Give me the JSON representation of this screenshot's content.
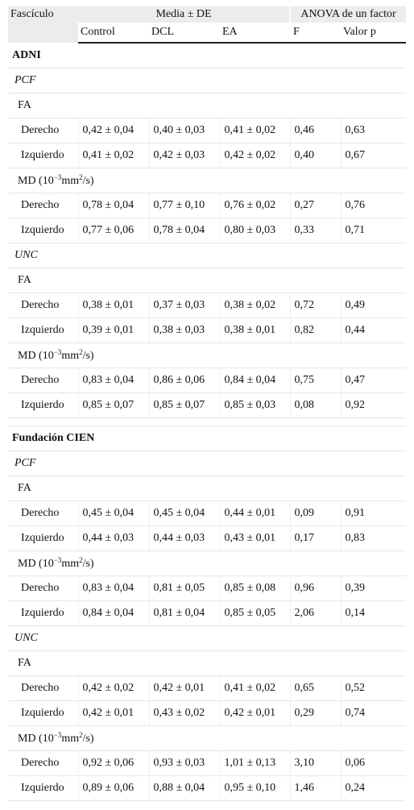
{
  "header": {
    "fasciculo": "Fascículo",
    "group_means": "Media ± DE",
    "group_anova": "ANOVA de un factor",
    "col_control": "Control",
    "col_dcl": "DCL",
    "col_ea": "EA",
    "col_f": "F",
    "col_p": "Valor p"
  },
  "md_label": {
    "a": "MD (10",
    "exp": "−3",
    "b": "mm",
    "sq": "2",
    "c": "/s)"
  },
  "sections": [
    {
      "name": "ADNI",
      "fascicles": [
        {
          "name": "PCF",
          "metrics": [
            {
              "label": "FA",
              "rows": [
                {
                  "side": "Derecho",
                  "control": "0,42 ± 0,04",
                  "dcl": "0,40 ± 0,03",
                  "ea": "0,41 ± 0,02",
                  "f": "0,46",
                  "p": "0,63"
                },
                {
                  "side": "Izquierdo",
                  "control": "0,41 ± 0,02",
                  "dcl": "0,42 ± 0,03",
                  "ea": "0,42 ± 0,02",
                  "f": "0,40",
                  "p": "0,67"
                }
              ]
            },
            {
              "label": "MD",
              "rows": [
                {
                  "side": "Derecho",
                  "control": "0,78 ± 0,04",
                  "dcl": "0,77 ± 0,10",
                  "ea": "0,76 ± 0,02",
                  "f": "0,27",
                  "p": "0,76"
                },
                {
                  "side": "Izquierdo",
                  "control": "0,77 ± 0,06",
                  "dcl": "0,78 ± 0,04",
                  "ea": "0,80 ± 0,03",
                  "f": "0,33",
                  "p": "0,71"
                }
              ]
            }
          ]
        },
        {
          "name": "UNC",
          "metrics": [
            {
              "label": "FA",
              "rows": [
                {
                  "side": "Derecho",
                  "control": "0,38 ± 0,01",
                  "dcl": "0,37 ± 0,03",
                  "ea": "0,38 ± 0,02",
                  "f": "0,72",
                  "p": "0,49"
                },
                {
                  "side": "Izquierdo",
                  "control": "0,39 ± 0,01",
                  "dcl": "0,38 ± 0,03",
                  "ea": "0,38 ± 0,01",
                  "f": "0,82",
                  "p": "0,44"
                }
              ]
            },
            {
              "label": "MD",
              "rows": [
                {
                  "side": "Derecho",
                  "control": "0,83 ± 0,04",
                  "dcl": "0,86 ± 0,06",
                  "ea": "0,84 ± 0,04",
                  "f": "0,75",
                  "p": "0,47"
                },
                {
                  "side": "Izquierdo",
                  "control": "0,85 ± 0,07",
                  "dcl": "0,85 ± 0,07",
                  "ea": "0,85 ± 0,03",
                  "f": "0,08",
                  "p": "0,92"
                }
              ]
            }
          ]
        }
      ]
    },
    {
      "name": "Fundación CIEN",
      "fascicles": [
        {
          "name": "PCF",
          "metrics": [
            {
              "label": "FA",
              "rows": [
                {
                  "side": "Derecho",
                  "control": "0,45 ± 0,04",
                  "dcl": "0,45 ± 0,04",
                  "ea": "0,44 ± 0,01",
                  "f": "0,09",
                  "p": "0,91"
                },
                {
                  "side": "Izquierdo",
                  "control": "0,44 ± 0,03",
                  "dcl": "0,44 ± 0,03",
                  "ea": "0,43 ± 0,01",
                  "f": "0,17",
                  "p": "0,83"
                }
              ]
            },
            {
              "label": "MD",
              "rows": [
                {
                  "side": "Derecho",
                  "control": "0,83 ± 0,04",
                  "dcl": "0,81 ± 0,05",
                  "ea": "0,85 ± 0,08",
                  "f": "0,96",
                  "p": "0,39"
                },
                {
                  "side": "Izquierdo",
                  "control": "0,84 ± 0,04",
                  "dcl": "0,81 ± 0,04",
                  "ea": "0,85 ± 0,05",
                  "f": "2,06",
                  "p": "0,14"
                }
              ]
            }
          ]
        },
        {
          "name": "UNC",
          "metrics": [
            {
              "label": "FA",
              "rows": [
                {
                  "side": "Derecho",
                  "control": "0,42 ± 0,02",
                  "dcl": "0,42 ± 0,01",
                  "ea": "0,41 ± 0,02",
                  "f": "0,65",
                  "p": "0,52"
                },
                {
                  "side": "Izquierdo",
                  "control": "0,42 ± 0,01",
                  "dcl": "0,43 ± 0,02",
                  "ea": "0,42 ± 0,01",
                  "f": "0,29",
                  "p": "0,74"
                }
              ]
            },
            {
              "label": "MD",
              "rows": [
                {
                  "side": "Derecho",
                  "control": "0,92 ± 0,06",
                  "dcl": "0,93 ± 0,03",
                  "ea": "1,01 ± 0,13",
                  "f": "3,10",
                  "p": "0,06"
                },
                {
                  "side": "Izquierdo",
                  "control": "0,89 ± 0,06",
                  "dcl": "0,88 ± 0,04",
                  "ea": "0,95 ± 0,10",
                  "f": "1,46",
                  "p": "0,24"
                }
              ]
            }
          ]
        }
      ]
    }
  ]
}
